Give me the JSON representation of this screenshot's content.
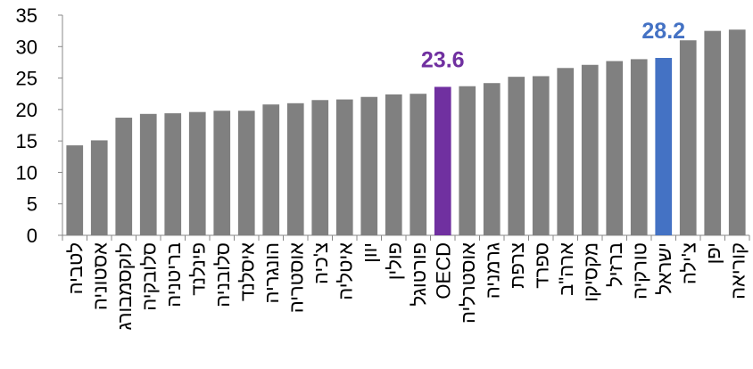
{
  "chart_data": {
    "type": "bar",
    "categories": [
      "לטביה",
      "אסטוניה",
      "לוקסמבורג",
      "סלובקיה",
      "בריטניה",
      "פינלנד",
      "סלובניה",
      "איסלנד",
      "הונגריה",
      "אוסטריה",
      "צ'כיה",
      "איטליה",
      "יוון",
      "פולין",
      "פורטוגל",
      "OECD",
      "אוסטרליה",
      "גרמניה",
      "צרפת",
      "ספרד",
      "ארה\"ב",
      "מקסיקו",
      "ברזיל",
      "טורקיה",
      "ישראל",
      "צ'ילה",
      "יפן",
      "קוריאה"
    ],
    "values": [
      14.3,
      15.1,
      18.7,
      19.3,
      19.4,
      19.6,
      19.8,
      19.8,
      20.8,
      21.0,
      21.5,
      21.6,
      22.0,
      22.4,
      22.5,
      23.6,
      23.7,
      24.2,
      25.2,
      25.3,
      26.6,
      27.1,
      27.7,
      28.0,
      28.2,
      31.0,
      32.5,
      32.7
    ],
    "value_labels": [
      null,
      null,
      null,
      null,
      null,
      null,
      null,
      null,
      null,
      null,
      null,
      null,
      null,
      null,
      null,
      "23.6",
      null,
      null,
      null,
      null,
      null,
      null,
      null,
      null,
      "28.2",
      null,
      null,
      null
    ],
    "colors": [
      "#808080",
      "#808080",
      "#808080",
      "#808080",
      "#808080",
      "#808080",
      "#808080",
      "#808080",
      "#808080",
      "#808080",
      "#808080",
      "#808080",
      "#808080",
      "#808080",
      "#808080",
      "#7030a0",
      "#808080",
      "#808080",
      "#808080",
      "#808080",
      "#808080",
      "#808080",
      "#808080",
      "#808080",
      "#4472c4",
      "#808080",
      "#808080",
      "#808080"
    ],
    "ylim": [
      0,
      35
    ],
    "yticks": [
      0,
      5,
      10,
      15,
      20,
      25,
      30,
      35
    ],
    "grid": false
  }
}
